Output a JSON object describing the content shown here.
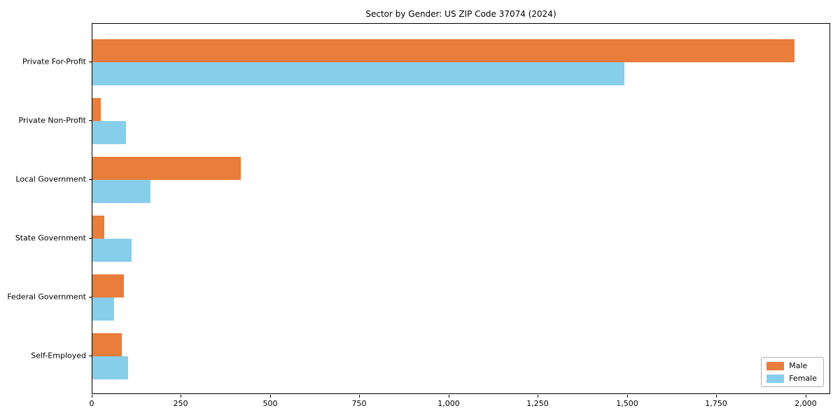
{
  "chart_data": {
    "type": "bar",
    "orientation": "horizontal",
    "title": "Sector by Gender: US ZIP Code 37074 (2024)",
    "categories": [
      "Private For-Profit",
      "Private Non-Profit",
      "Local Government",
      "State Government",
      "Federal Government",
      "Self-Employed"
    ],
    "series": [
      {
        "name": "Male",
        "color": "#e87d3c",
        "values": [
          1968,
          24,
          415,
          33,
          88,
          82
        ]
      },
      {
        "name": "Female",
        "color": "#87ceeb",
        "values": [
          1490,
          94,
          162,
          110,
          61,
          100
        ]
      }
    ],
    "xlabel": "",
    "ylabel": "",
    "xlim": [
      0,
      2069
    ],
    "xticks": [
      0,
      250,
      500,
      750,
      1000,
      1250,
      1500,
      1750,
      2000
    ],
    "xtick_labels": [
      "0",
      "250",
      "500",
      "750",
      "1,000",
      "1,250",
      "1,500",
      "1,750",
      "2,000"
    ],
    "grid": false,
    "legend": {
      "position": "lower-right",
      "entries": [
        "Male",
        "Female"
      ]
    }
  }
}
